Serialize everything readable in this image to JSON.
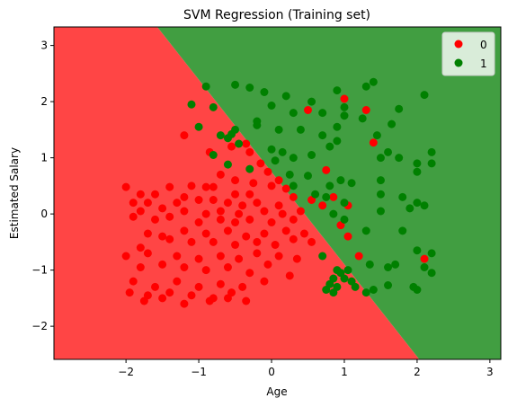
{
  "chart_data": {
    "type": "scatter",
    "title": "SVM Regression (Training set)",
    "xlabel": "Age",
    "ylabel": "Estimated Salary",
    "xlim": [
      -2.99,
      3.15
    ],
    "ylim": [
      -2.59,
      3.33
    ],
    "xticks": [
      "−2",
      "−1",
      "0",
      "1",
      "2",
      "3"
    ],
    "xtick_values": [
      -2,
      -1,
      0,
      1,
      2,
      3
    ],
    "yticks": [
      "−2",
      "−1",
      "0",
      "1",
      "2",
      "3"
    ],
    "ytick_values": [
      -2,
      -1,
      0,
      1,
      2,
      3
    ],
    "grid": false,
    "legend_position": "top-right",
    "decision_boundary": {
      "points": [
        [
          -1.57,
          3.33
        ],
        [
          2.03,
          -2.59
        ]
      ],
      "left_region_class": "0",
      "right_region_class": "1"
    },
    "regions": [
      {
        "class": "0",
        "color": "#ff4545"
      },
      {
        "class": "1",
        "color": "#419e41"
      }
    ],
    "series": [
      {
        "name": "0",
        "color": "#ff0000",
        "points": [
          [
            -2.0,
            0.48
          ],
          [
            -1.8,
            0.35
          ],
          [
            -1.6,
            0.35
          ],
          [
            -1.4,
            0.48
          ],
          [
            -1.1,
            0.5
          ],
          [
            -0.9,
            0.48
          ],
          [
            -0.8,
            0.48
          ],
          [
            -0.5,
            0.35
          ],
          [
            -0.3,
            0.35
          ],
          [
            -1.9,
            0.2
          ],
          [
            -1.7,
            0.2
          ],
          [
            -1.3,
            0.2
          ],
          [
            -1.2,
            0.3
          ],
          [
            -1.0,
            0.25
          ],
          [
            -0.8,
            0.25
          ],
          [
            -0.6,
            0.2
          ],
          [
            -0.4,
            0.15
          ],
          [
            -0.2,
            0.2
          ],
          [
            0.1,
            0.15
          ],
          [
            -1.8,
            0.05
          ],
          [
            -1.5,
            0.1
          ],
          [
            -1.2,
            0.05
          ],
          [
            -0.9,
            0.0
          ],
          [
            -0.7,
            0.05
          ],
          [
            -0.45,
            0.0
          ],
          [
            -0.1,
            0.05
          ],
          [
            0.15,
            0.0
          ],
          [
            0.4,
            0.05
          ],
          [
            -1.9,
            -0.05
          ],
          [
            -1.6,
            -0.1
          ],
          [
            -1.4,
            -0.05
          ],
          [
            -1.0,
            -0.15
          ],
          [
            -0.7,
            -0.1
          ],
          [
            -0.5,
            -0.15
          ],
          [
            -0.3,
            -0.1
          ],
          [
            0.0,
            -0.15
          ],
          [
            0.3,
            -0.1
          ],
          [
            -1.7,
            -0.35
          ],
          [
            -1.5,
            -0.4
          ],
          [
            -1.2,
            -0.3
          ],
          [
            -0.9,
            -0.35
          ],
          [
            -0.6,
            -0.3
          ],
          [
            -0.35,
            -0.4
          ],
          [
            -0.1,
            -0.35
          ],
          [
            0.2,
            -0.3
          ],
          [
            0.45,
            -0.35
          ],
          [
            -1.8,
            -0.6
          ],
          [
            -1.4,
            -0.45
          ],
          [
            -1.1,
            -0.5
          ],
          [
            -0.8,
            -0.5
          ],
          [
            -0.5,
            -0.55
          ],
          [
            -0.2,
            -0.5
          ],
          [
            0.05,
            -0.55
          ],
          [
            0.3,
            -0.45
          ],
          [
            0.55,
            -0.5
          ],
          [
            -2.0,
            -0.75
          ],
          [
            -1.7,
            -0.7
          ],
          [
            -1.3,
            -0.75
          ],
          [
            -1.0,
            -0.8
          ],
          [
            -0.7,
            -0.75
          ],
          [
            -0.45,
            -0.8
          ],
          [
            -0.2,
            -0.7
          ],
          [
            0.1,
            -0.75
          ],
          [
            0.35,
            -0.8
          ],
          [
            -1.8,
            -0.95
          ],
          [
            -1.5,
            -0.9
          ],
          [
            -1.2,
            -0.95
          ],
          [
            -0.9,
            -1.0
          ],
          [
            -0.6,
            -0.95
          ],
          [
            -0.3,
            -1.05
          ],
          [
            -0.05,
            -0.9
          ],
          [
            0.25,
            -1.1
          ],
          [
            -1.9,
            -1.2
          ],
          [
            -1.6,
            -1.3
          ],
          [
            -1.3,
            -1.2
          ],
          [
            -1.0,
            -1.3
          ],
          [
            -0.7,
            -1.25
          ],
          [
            -0.4,
            -1.3
          ],
          [
            -0.1,
            -1.2
          ],
          [
            -1.95,
            -1.4
          ],
          [
            -1.7,
            -1.45
          ],
          [
            -1.4,
            -1.4
          ],
          [
            -1.1,
            -1.45
          ],
          [
            -0.8,
            -1.5
          ],
          [
            -0.55,
            -1.4
          ],
          [
            -0.35,
            -1.55
          ],
          [
            -1.75,
            -1.55
          ],
          [
            -1.5,
            -1.5
          ],
          [
            -1.2,
            -1.6
          ],
          [
            -0.85,
            -1.55
          ],
          [
            -0.6,
            -1.5
          ],
          [
            -1.2,
            1.4
          ],
          [
            -0.85,
            1.1
          ],
          [
            -0.3,
            1.1
          ],
          [
            -0.55,
            1.2
          ],
          [
            -0.35,
            1.25
          ],
          [
            -0.15,
            0.9
          ],
          [
            -0.05,
            0.75
          ],
          [
            0.1,
            0.6
          ],
          [
            0.2,
            0.45
          ],
          [
            -0.7,
            0.7
          ],
          [
            -0.5,
            0.6
          ],
          [
            -0.25,
            0.55
          ],
          [
            0.0,
            0.5
          ],
          [
            0.3,
            0.3
          ],
          [
            0.55,
            0.25
          ],
          [
            0.7,
            0.15
          ],
          [
            0.85,
            0.3
          ],
          [
            1.05,
            0.15
          ],
          [
            0.5,
            1.85
          ],
          [
            0.75,
            0.78
          ],
          [
            1.0,
            2.05
          ],
          [
            1.3,
            1.85
          ],
          [
            1.4,
            1.27
          ],
          [
            1.2,
            -0.75
          ],
          [
            2.1,
            -0.8
          ],
          [
            0.95,
            -0.2
          ],
          [
            1.05,
            -0.4
          ]
        ]
      },
      {
        "name": "1",
        "color": "#008000",
        "points": [
          [
            -0.9,
            2.27
          ],
          [
            -0.5,
            2.3
          ],
          [
            -0.3,
            2.25
          ],
          [
            -0.1,
            2.17
          ],
          [
            0.2,
            2.1
          ],
          [
            0.55,
            2.0
          ],
          [
            0.9,
            2.2
          ],
          [
            1.3,
            2.27
          ],
          [
            1.4,
            2.35
          ],
          [
            2.1,
            2.12
          ],
          [
            -1.1,
            1.95
          ],
          [
            -0.8,
            1.9
          ],
          [
            0.0,
            1.93
          ],
          [
            0.3,
            1.8
          ],
          [
            0.7,
            1.8
          ],
          [
            1.0,
            1.9
          ],
          [
            1.0,
            1.75
          ],
          [
            1.25,
            1.7
          ],
          [
            1.65,
            1.6
          ],
          [
            -1.0,
            1.55
          ],
          [
            -0.7,
            1.4
          ],
          [
            -0.6,
            1.35
          ],
          [
            -0.5,
            1.5
          ],
          [
            -0.2,
            1.58
          ],
          [
            -0.2,
            1.65
          ],
          [
            0.1,
            1.5
          ],
          [
            0.4,
            1.5
          ],
          [
            0.7,
            1.4
          ],
          [
            0.9,
            1.55
          ],
          [
            1.45,
            1.4
          ],
          [
            1.75,
            1.87
          ],
          [
            -0.55,
            1.42
          ],
          [
            -0.45,
            1.25
          ],
          [
            -0.8,
            1.05
          ],
          [
            -0.6,
            0.88
          ],
          [
            0.0,
            1.15
          ],
          [
            0.15,
            1.1
          ],
          [
            0.3,
            1.0
          ],
          [
            0.55,
            1.05
          ],
          [
            0.8,
            1.2
          ],
          [
            0.9,
            1.3
          ],
          [
            1.5,
            1.0
          ],
          [
            1.6,
            1.1
          ],
          [
            1.75,
            1.0
          ],
          [
            2.0,
            0.9
          ],
          [
            2.2,
            1.1
          ],
          [
            -0.3,
            0.8
          ],
          [
            0.05,
            0.95
          ],
          [
            0.25,
            0.7
          ],
          [
            0.5,
            0.68
          ],
          [
            0.8,
            0.5
          ],
          [
            0.95,
            0.6
          ],
          [
            1.1,
            0.55
          ],
          [
            1.5,
            0.6
          ],
          [
            1.5,
            0.35
          ],
          [
            2.0,
            0.75
          ],
          [
            2.2,
            0.9
          ],
          [
            0.3,
            0.5
          ],
          [
            0.6,
            0.35
          ],
          [
            0.75,
            0.3
          ],
          [
            1.0,
            0.2
          ],
          [
            1.5,
            0.05
          ],
          [
            1.8,
            0.3
          ],
          [
            2.0,
            0.2
          ],
          [
            2.1,
            0.15
          ],
          [
            1.9,
            0.1
          ],
          [
            0.85,
            0.0
          ],
          [
            1.0,
            -0.1
          ],
          [
            1.3,
            -0.3
          ],
          [
            1.8,
            -0.3
          ],
          [
            1.35,
            -0.9
          ],
          [
            1.6,
            -0.95
          ],
          [
            1.7,
            -0.9
          ],
          [
            2.0,
            -0.65
          ],
          [
            2.2,
            -0.7
          ],
          [
            0.7,
            -0.75
          ],
          [
            0.8,
            -1.25
          ],
          [
            0.85,
            -1.15
          ],
          [
            0.9,
            -1.0
          ],
          [
            0.95,
            -1.05
          ],
          [
            1.05,
            -1.0
          ],
          [
            0.75,
            -1.35
          ],
          [
            0.85,
            -1.4
          ],
          [
            0.9,
            -1.3
          ],
          [
            1.0,
            -1.15
          ],
          [
            1.1,
            -1.2
          ],
          [
            1.15,
            -1.3
          ],
          [
            1.4,
            -1.35
          ],
          [
            1.6,
            -1.27
          ],
          [
            1.95,
            -1.3
          ],
          [
            2.0,
            -1.35
          ],
          [
            2.2,
            -1.05
          ],
          [
            2.1,
            -0.95
          ],
          [
            1.3,
            -1.4
          ]
        ]
      }
    ]
  }
}
